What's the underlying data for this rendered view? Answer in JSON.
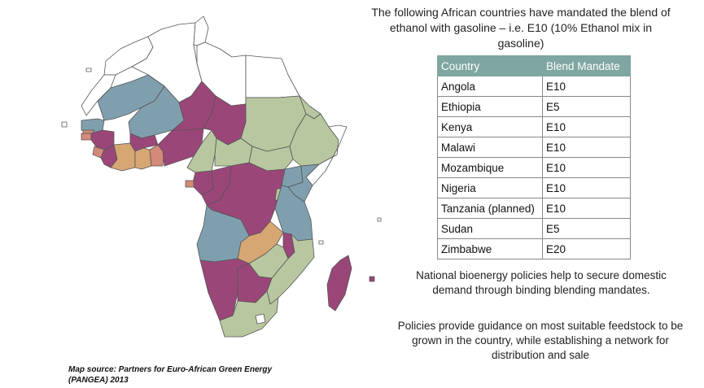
{
  "heading": "The following African countries have mandated the blend of ethanol with gasoline – i.e. E10 (10% Ethanol mix in gasoline)",
  "table": {
    "headers": [
      "Country",
      "Blend Mandate"
    ],
    "rows": [
      {
        "country": "Angola",
        "mandate": "E10"
      },
      {
        "country": "Ethiopia",
        "mandate": "E5"
      },
      {
        "country": "Kenya",
        "mandate": "E10"
      },
      {
        "country": "Malawi",
        "mandate": "E10"
      },
      {
        "country": "Mozambique",
        "mandate": "E10"
      },
      {
        "country": "Nigeria",
        "mandate": "E10"
      },
      {
        "country": "Tanzania (planned)",
        "mandate": "E10"
      },
      {
        "country": "Sudan",
        "mandate": "E5"
      },
      {
        "country": "Zimbabwe",
        "mandate": "E20"
      }
    ]
  },
  "notes": [
    "National bioenergy policies help to secure domestic demand through binding blending mandates.",
    "Policies provide guidance on most suitable feedstock to be grown in the country, while establishing a network for distribution and sale"
  ],
  "source_line1": "Map source: Partners for Euro-African Green Energy",
  "source_line2": "(PANGEA)  2013",
  "colors": {
    "purple": "#9b4679",
    "steel_blue": "#7f9fae",
    "sage_green": "#b8c79f",
    "tan": "#d6a773",
    "salmon": "#d48a78",
    "white": "#ffffff",
    "header_teal": "#7fa6a0"
  }
}
